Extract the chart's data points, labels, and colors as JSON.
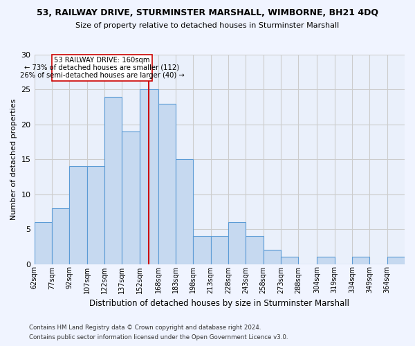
{
  "title": "53, RAILWAY DRIVE, STURMINSTER MARSHALL, WIMBORNE, BH21 4DQ",
  "subtitle": "Size of property relative to detached houses in Sturminster Marshall",
  "xlabel": "Distribution of detached houses by size in Sturminster Marshall",
  "ylabel": "Number of detached properties",
  "footnote1": "Contains HM Land Registry data © Crown copyright and database right 2024.",
  "footnote2": "Contains public sector information licensed under the Open Government Licence v3.0.",
  "annotation_title": "53 RAILWAY DRIVE: 160sqm",
  "annotation_line1": "← 73% of detached houses are smaller (112)",
  "annotation_line2": "26% of semi-detached houses are larger (40) →",
  "property_size": 160,
  "categories": [
    "62sqm",
    "77sqm",
    "92sqm",
    "107sqm",
    "122sqm",
    "137sqm",
    "152sqm",
    "168sqm",
    "183sqm",
    "198sqm",
    "213sqm",
    "228sqm",
    "243sqm",
    "258sqm",
    "273sqm",
    "288sqm",
    "304sqm",
    "319sqm",
    "334sqm",
    "349sqm",
    "364sqm"
  ],
  "bar_edges": [
    62,
    77,
    92,
    107,
    122,
    137,
    152,
    168,
    183,
    198,
    213,
    228,
    243,
    258,
    273,
    288,
    304,
    319,
    334,
    349,
    364,
    379
  ],
  "values": [
    6,
    8,
    14,
    14,
    24,
    19,
    25,
    23,
    15,
    4,
    4,
    6,
    4,
    2,
    1,
    0,
    1,
    0,
    1,
    0,
    1
  ],
  "bar_color": "#c6d9f0",
  "bar_edge_color": "#5b9bd5",
  "line_color": "#cc0000",
  "grid_color": "#cccccc",
  "bg_color": "#eaf0fb",
  "fig_color": "#f0f4ff",
  "ylim": [
    0,
    30
  ],
  "yticks": [
    0,
    5,
    10,
    15,
    20,
    25,
    30
  ]
}
